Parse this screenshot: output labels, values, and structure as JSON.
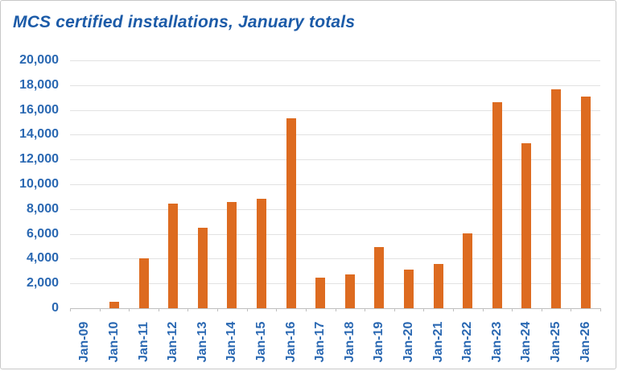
{
  "chart_data": {
    "type": "bar",
    "title": "MCS certified installations, January totals",
    "categories": [
      "Jan-09",
      "Jan-10",
      "Jan-11",
      "Jan-12",
      "Jan-13",
      "Jan-14",
      "Jan-15",
      "Jan-16",
      "Jan-17",
      "Jan-18",
      "Jan-19",
      "Jan-20",
      "Jan-21",
      "Jan-22",
      "Jan-23",
      "Jan-24",
      "Jan-25",
      "Jan-26"
    ],
    "values": [
      0,
      500,
      4050,
      8450,
      6500,
      8600,
      8800,
      15350,
      2450,
      2750,
      4950,
      3100,
      3600,
      6050,
      16650,
      13300,
      17650,
      17100
    ],
    "xlabel": "",
    "ylabel": "",
    "ylim": [
      0,
      20000
    ],
    "yticks": [
      0,
      2000,
      4000,
      6000,
      8000,
      10000,
      12000,
      14000,
      16000,
      18000,
      20000
    ],
    "ytick_labels": [
      "0",
      "2,000",
      "4,000",
      "6,000",
      "8,000",
      "10,000",
      "12,000",
      "14,000",
      "16,000",
      "18,000",
      "20,000"
    ],
    "grid": true,
    "legend": false,
    "colors": {
      "bar": "#DD6B20",
      "title": "#1C5BA8",
      "axis_labels": "#2A68B2",
      "gridline": "#E2E2E2",
      "axis_line": "#BFBFBF",
      "chart_border": "#C8C8C8",
      "background": "#FFFFFF"
    }
  }
}
